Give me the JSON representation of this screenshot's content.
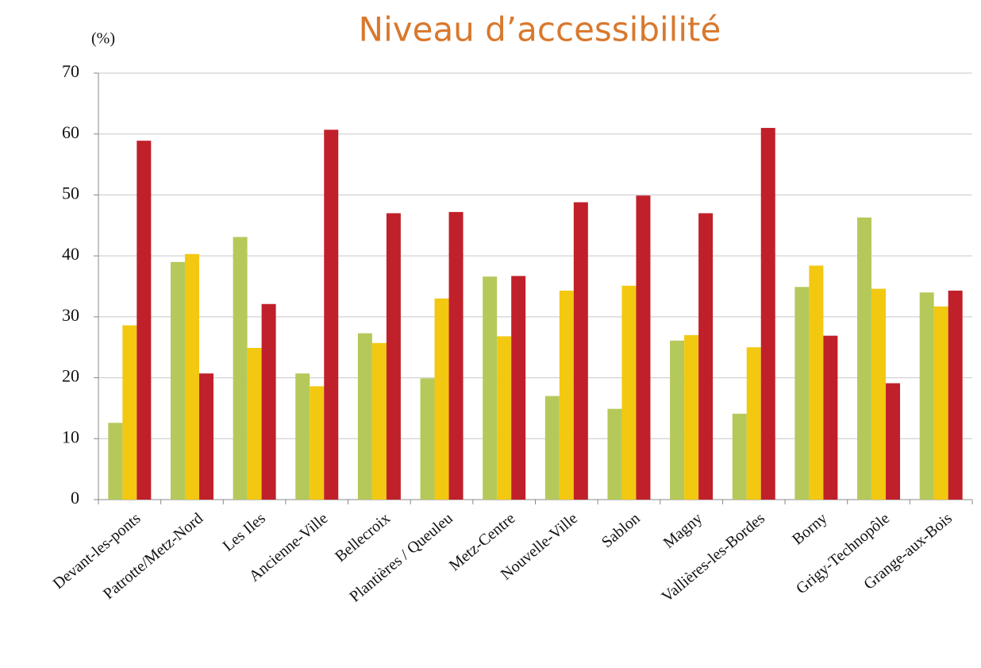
{
  "chart_data": {
    "type": "bar",
    "title": "Niveau d’accessibilité",
    "y_label": "(%)",
    "categories": [
      "Devant-les-ponts",
      "Patrotte/Metz-Nord",
      "Les Iles",
      "Ancienne-Ville",
      "Bellecroix",
      "Plantières / Queuleu",
      "Metz-Centre",
      "Nouvelle-Ville",
      "Sablon",
      "Magny",
      "Vallières-les-Bordes",
      "Borny",
      "Grigy-Technopôle",
      "Grange-aux-Bois"
    ],
    "series": [
      {
        "color": "#b5c95a",
        "values": [
          12.6,
          39,
          43.1,
          20.7,
          27.3,
          19.9,
          36.6,
          17,
          14.9,
          26.1,
          14.1,
          34.9,
          46.3,
          34
        ]
      },
      {
        "color": "#f2c811",
        "values": [
          28.6,
          40.3,
          24.9,
          18.6,
          25.7,
          33,
          26.8,
          34.3,
          35.1,
          27,
          25,
          38.4,
          34.6,
          31.7
        ]
      },
      {
        "color": "#c0202a",
        "values": [
          58.9,
          20.7,
          32.1,
          60.7,
          47,
          47.2,
          36.7,
          48.8,
          49.9,
          47,
          61,
          26.9,
          19.1,
          34.3
        ]
      }
    ],
    "ylim": [
      0,
      70
    ],
    "yticks": [
      0,
      10,
      20,
      30,
      40,
      50,
      60,
      70
    ],
    "grid": true
  }
}
